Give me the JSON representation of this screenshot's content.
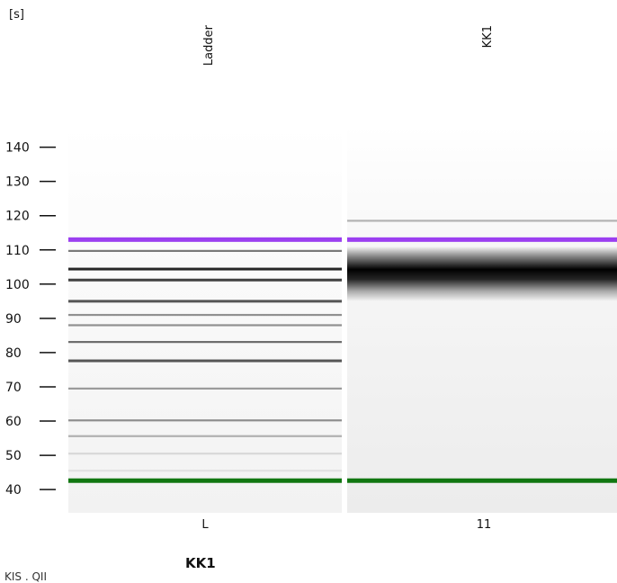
{
  "chart_data": {
    "type": "gel",
    "y_unit": "[s]",
    "ylim": [
      33.2,
      146.2
    ],
    "y_ticks": [
      40,
      50,
      60,
      70,
      80,
      90,
      100,
      110,
      120,
      130,
      140
    ],
    "lanes": [
      {
        "label": "Ladder",
        "well": "L",
        "bands": [
          {
            "y": 113.0,
            "color": "#9b3ff0",
            "intensity": 1.0
          },
          {
            "y": 109.7,
            "color": "#111111",
            "intensity": 0.55
          },
          {
            "y": 104.4,
            "color": "#111111",
            "intensity": 0.9
          },
          {
            "y": 101.2,
            "color": "#111111",
            "intensity": 0.8
          },
          {
            "y": 95.0,
            "color": "#111111",
            "intensity": 0.7
          },
          {
            "y": 91.0,
            "color": "#111111",
            "intensity": 0.45
          },
          {
            "y": 88.0,
            "color": "#111111",
            "intensity": 0.45
          },
          {
            "y": 83.1,
            "color": "#111111",
            "intensity": 0.6
          },
          {
            "y": 77.6,
            "color": "#111111",
            "intensity": 0.7
          },
          {
            "y": 69.5,
            "color": "#111111",
            "intensity": 0.4
          },
          {
            "y": 60.2,
            "color": "#111111",
            "intensity": 0.45
          },
          {
            "y": 55.6,
            "color": "#111111",
            "intensity": 0.3
          },
          {
            "y": 50.5,
            "color": "#111111",
            "intensity": 0.12
          },
          {
            "y": 45.5,
            "color": "#111111",
            "intensity": 0.08
          },
          {
            "y": 42.6,
            "color": "#117711",
            "intensity": 1.0
          }
        ]
      },
      {
        "label": "KK1",
        "well": "11",
        "bands": [
          {
            "y": 118.5,
            "color": "#111111",
            "intensity": 0.3
          },
          {
            "y": 113.0,
            "color": "#9b3ff0",
            "intensity": 1.0
          },
          {
            "y": 102.0,
            "color": "#000000",
            "intensity": 1.0,
            "smear": [
              95,
              111
            ]
          },
          {
            "y": 42.6,
            "color": "#117711",
            "intensity": 1.0
          }
        ]
      }
    ]
  },
  "bottom_title": "KK1",
  "caption_cut": "KIS . QII"
}
